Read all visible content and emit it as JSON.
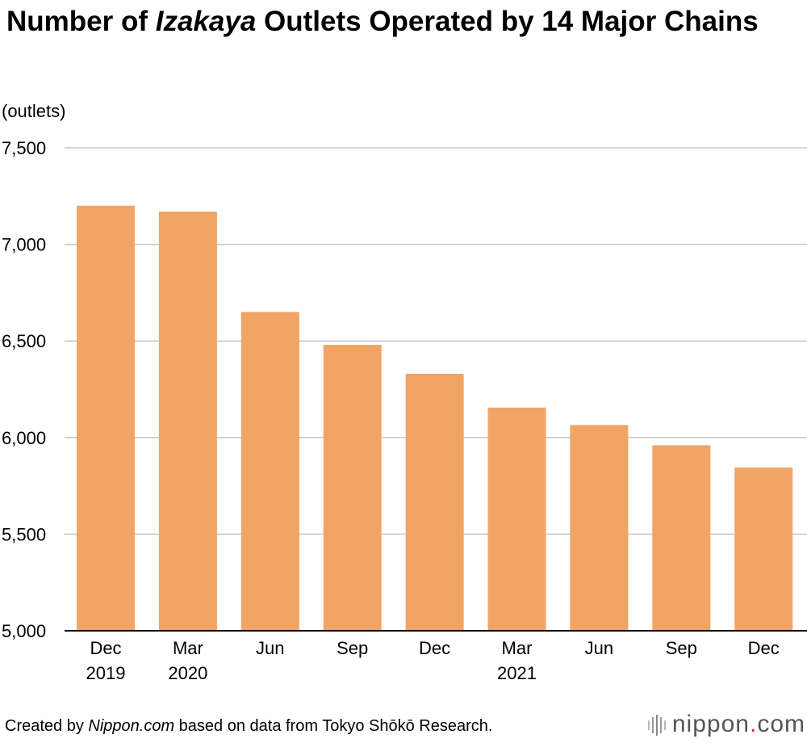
{
  "header": {
    "title_pre": "Number of ",
    "title_em": "Izakaya",
    "title_post": " Outlets Operated by 14 Major Chains"
  },
  "footer": {
    "credit_pre": "Created by ",
    "credit_em": "Nippon.com",
    "credit_post": " based on data from Tokyo Shōkō Research.",
    "brand_name": "nippon",
    "brand_dot": ".",
    "brand_tld": "com"
  },
  "colors": {
    "bar": "#F2A465",
    "grid": "#C8C8C8",
    "axis": "#000000",
    "brand_dot": "#D7282F"
  },
  "chart_data": {
    "type": "bar",
    "ylabel": "(outlets)",
    "ylim": [
      5000,
      7500
    ],
    "yticks": [
      5000,
      5500,
      6000,
      6500,
      7000,
      7500
    ],
    "ytick_labels": [
      "5,000",
      "5,500",
      "6,000",
      "6,500",
      "7,000",
      "7,500"
    ],
    "grid": true,
    "categories": [
      [
        "Dec",
        "2019"
      ],
      [
        "Mar",
        "2020"
      ],
      [
        "Jun"
      ],
      [
        "Sep"
      ],
      [
        "Dec"
      ],
      [
        "Mar",
        "2021"
      ],
      [
        "Jun"
      ],
      [
        "Sep"
      ],
      [
        "Dec"
      ]
    ],
    "values": [
      7200,
      7170,
      6650,
      6480,
      6330,
      6155,
      6065,
      5960,
      5845
    ]
  }
}
